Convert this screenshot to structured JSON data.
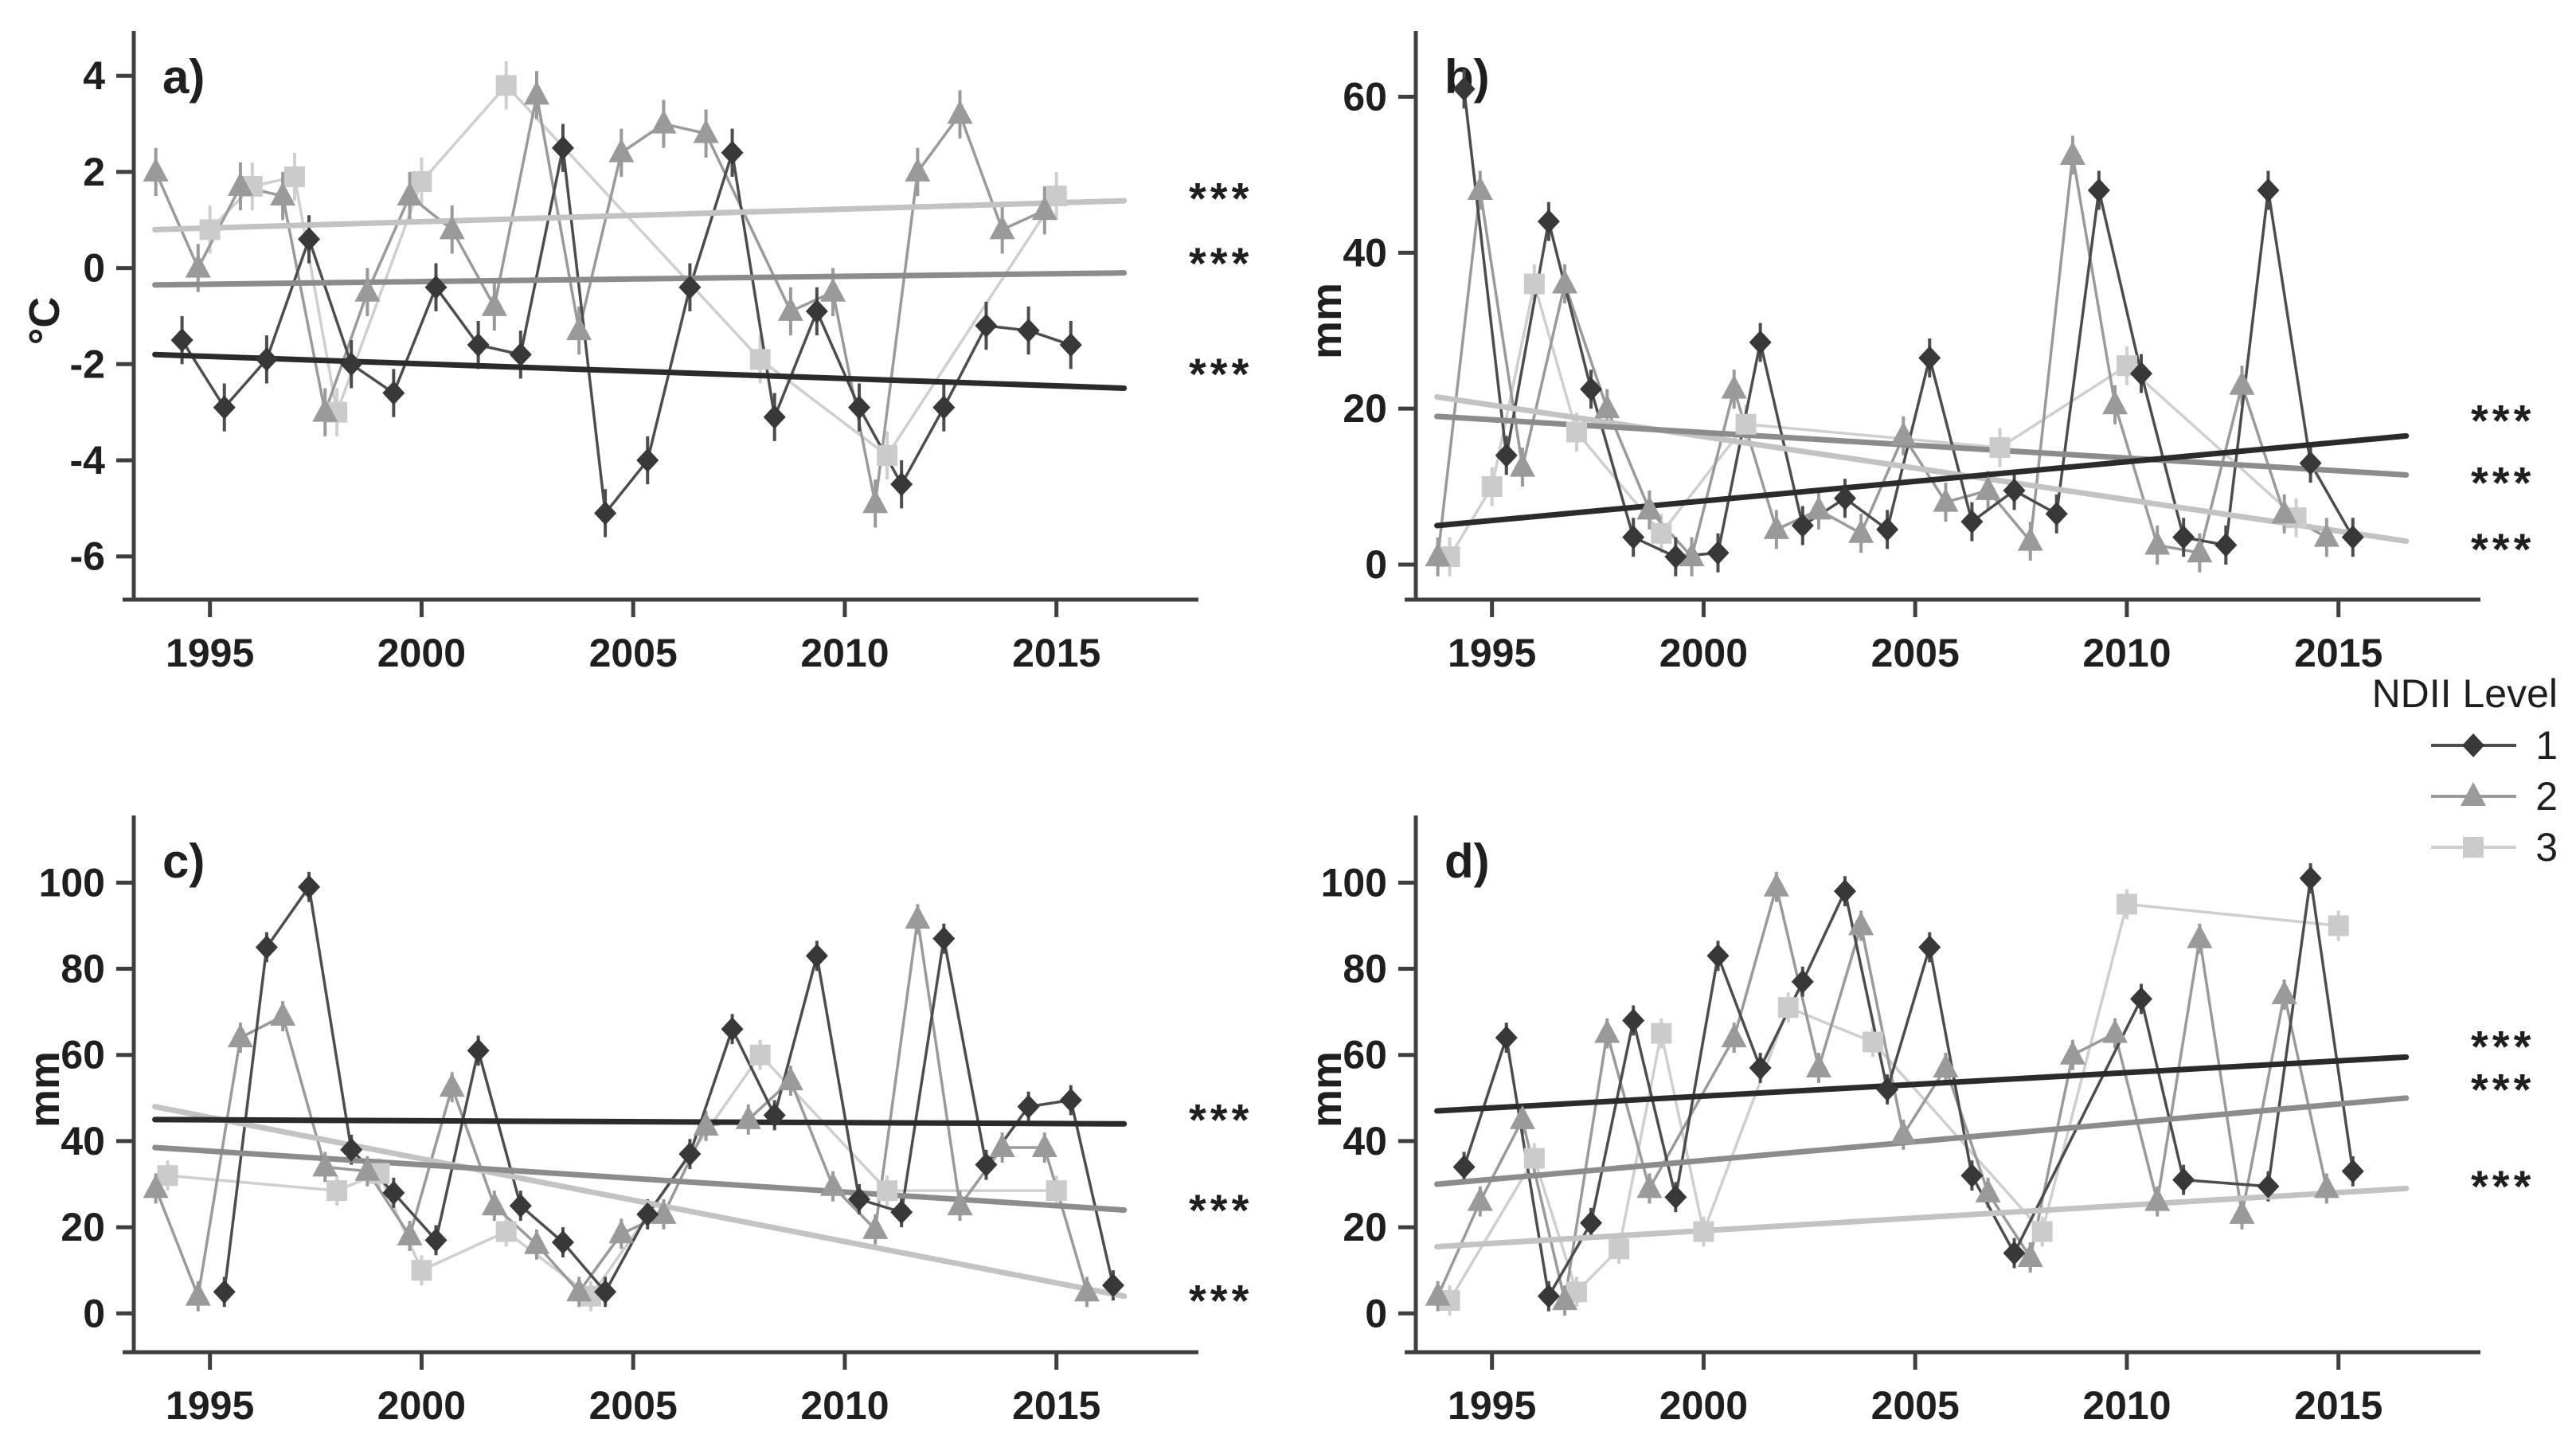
{
  "figure": {
    "background": "#ffffff",
    "description": "Four-panel seasonal climate time-series figure by NDII level"
  },
  "legend": {
    "title": "NDII Level",
    "items": [
      {
        "label": "1",
        "marker": "diamond",
        "color": "#383838",
        "line_color": "#4d4d4d",
        "trend_color": "#2b2b2b"
      },
      {
        "label": "2",
        "marker": "triangle",
        "color": "#9a9a9a",
        "line_color": "#9a9a9a",
        "trend_color": "#8c8c8c"
      },
      {
        "label": "3",
        "marker": "square",
        "color": "#cbcbcb",
        "line_color": "#cfcfcf",
        "trend_color": "#c3c3c3"
      }
    ]
  },
  "chart_data": [
    {
      "id": "a",
      "panel": "a)",
      "type": "line",
      "title": "",
      "xlabel": "",
      "ylabel": "°C",
      "x": [
        1994,
        1995,
        1996,
        1997,
        1998,
        1999,
        2000,
        2001,
        2002,
        2003,
        2004,
        2005,
        2006,
        2007,
        2008,
        2009,
        2010,
        2011,
        2012,
        2013,
        2014,
        2015,
        2016
      ],
      "x_ticks": [
        1995,
        2000,
        2005,
        2010,
        2015
      ],
      "y_ticks": [
        4,
        2,
        0,
        -2,
        -4,
        -6
      ],
      "xlim": [
        1993.2,
        2017.0
      ],
      "ylim": [
        -6.9,
        4.7
      ],
      "grid": false,
      "error_bar_halfwidth": 0.5,
      "series": [
        {
          "name": "NDII Level 1",
          "marker": "diamond",
          "values": [
            -1.5,
            -2.9,
            -1.9,
            0.6,
            -2.0,
            -2.6,
            -0.4,
            -1.6,
            -1.8,
            2.5,
            -5.1,
            -4.0,
            -0.4,
            2.4,
            -3.1,
            -0.9,
            -2.9,
            -4.5,
            -2.9,
            -1.2,
            -1.3,
            -1.6,
            null
          ],
          "trend": {
            "start": -1.8,
            "end": -2.5,
            "label": "***",
            "label_y": -2.2
          }
        },
        {
          "name": "NDII Level 2",
          "marker": "triangle",
          "values": [
            2.0,
            0.0,
            1.7,
            1.5,
            -3.0,
            -0.5,
            1.5,
            0.8,
            -0.8,
            3.6,
            -1.3,
            2.4,
            3.0,
            2.8,
            null,
            -0.9,
            -0.5,
            -4.9,
            2.0,
            3.2,
            0.8,
            1.2,
            null
          ],
          "trend": {
            "start": -0.35,
            "end": -0.1,
            "label": "***",
            "label_y": 0.1
          }
        },
        {
          "name": "NDII Level 3",
          "marker": "square",
          "values": [
            null,
            0.8,
            1.7,
            1.9,
            -3.0,
            null,
            1.8,
            null,
            3.8,
            null,
            null,
            null,
            null,
            null,
            -1.9,
            null,
            null,
            -3.9,
            null,
            null,
            null,
            1.5,
            null
          ],
          "trend": {
            "start": 0.8,
            "end": 1.4,
            "label": "***",
            "label_y": 1.45
          }
        }
      ]
    },
    {
      "id": "b",
      "panel": "b)",
      "type": "line",
      "title": "",
      "xlabel": "",
      "ylabel": "mm",
      "x": [
        1994,
        1995,
        1996,
        1997,
        1998,
        1999,
        2000,
        2001,
        2002,
        2003,
        2004,
        2005,
        2006,
        2007,
        2008,
        2009,
        2010,
        2011,
        2012,
        2013,
        2014,
        2015,
        2016
      ],
      "x_ticks": [
        1995,
        2000,
        2005,
        2010,
        2015
      ],
      "y_ticks": [
        60,
        40,
        20,
        0
      ],
      "xlim": [
        1993.2,
        2017.0
      ],
      "ylim": [
        -4.5,
        67
      ],
      "grid": false,
      "error_bar_halfwidth": 2.5,
      "series": [
        {
          "name": "NDII Level 1",
          "marker": "diamond",
          "values": [
            61,
            14,
            44,
            22.5,
            3.5,
            1,
            1.5,
            28.5,
            5,
            8.5,
            4.5,
            26.5,
            5.5,
            9.5,
            6.5,
            48,
            24.5,
            3.5,
            2.5,
            48,
            13,
            3.5,
            null
          ],
          "trend": {
            "start": 5,
            "end": 16.5,
            "label": "***",
            "label_y": 18.5
          }
        },
        {
          "name": "NDII Level 2",
          "marker": "triangle",
          "values": [
            1,
            48,
            12.5,
            36,
            20,
            7,
            1,
            22.5,
            4.5,
            7,
            4,
            16.5,
            8,
            9.5,
            3,
            52.5,
            20.5,
            2.5,
            1.5,
            23,
            6.5,
            3.5,
            null
          ],
          "trend": {
            "start": 19,
            "end": 11.5,
            "label": "***",
            "label_y": 10.5
          }
        },
        {
          "name": "NDII Level 3",
          "marker": "square",
          "values": [
            1,
            10,
            36,
            17,
            null,
            4,
            null,
            18,
            null,
            null,
            null,
            null,
            null,
            15,
            null,
            null,
            25.5,
            null,
            null,
            null,
            6,
            null,
            null
          ],
          "trend": {
            "start": 21.5,
            "end": 3,
            "label": "***",
            "label_y": 2
          }
        }
      ]
    },
    {
      "id": "c",
      "panel": "c)",
      "type": "line",
      "title": "",
      "xlabel": "",
      "ylabel": "mm",
      "x": [
        1994,
        1995,
        1996,
        1997,
        1998,
        1999,
        2000,
        2001,
        2002,
        2003,
        2004,
        2005,
        2006,
        2007,
        2008,
        2009,
        2010,
        2011,
        2012,
        2013,
        2014,
        2015,
        2016
      ],
      "x_ticks": [
        1995,
        2000,
        2005,
        2010,
        2015
      ],
      "y_ticks": [
        100,
        80,
        60,
        40,
        20,
        0
      ],
      "xlim": [
        1993.2,
        2017.0
      ],
      "ylim": [
        -9,
        113
      ],
      "grid": false,
      "error_bar_halfwidth": 3.5,
      "series": [
        {
          "name": "NDII Level 1",
          "marker": "diamond",
          "values": [
            null,
            5,
            85,
            99,
            38,
            28,
            17,
            61,
            25,
            16.5,
            5,
            23,
            37,
            66,
            46,
            83,
            26.5,
            23.5,
            87,
            34.5,
            48,
            49.5,
            6.5
          ],
          "trend": {
            "start": 45,
            "end": 44,
            "label": "***",
            "label_y": 45
          }
        },
        {
          "name": "NDII Level 2",
          "marker": "triangle",
          "values": [
            29,
            4,
            64,
            69,
            34,
            33,
            18,
            52.5,
            25,
            16,
            5,
            18.5,
            23,
            43.5,
            45,
            54,
            29.5,
            19.5,
            91.5,
            25,
            38.5,
            38.5,
            5
          ],
          "trend": {
            "start": 38.5,
            "end": 24,
            "label": "***",
            "label_y": 24
          }
        },
        {
          "name": "NDII Level 3",
          "marker": "square",
          "values": [
            32,
            null,
            null,
            null,
            28.5,
            32.5,
            10,
            null,
            19,
            null,
            4,
            null,
            null,
            null,
            60,
            null,
            null,
            28.5,
            null,
            null,
            null,
            28.5,
            null
          ],
          "trend": {
            "start": 48,
            "end": 4,
            "label": "***",
            "label_y": 3
          }
        }
      ]
    },
    {
      "id": "d",
      "panel": "d)",
      "type": "line",
      "title": "",
      "xlabel": "",
      "ylabel": "mm",
      "x": [
        1994,
        1995,
        1996,
        1997,
        1998,
        1999,
        2000,
        2001,
        2002,
        2003,
        2004,
        2005,
        2006,
        2007,
        2008,
        2009,
        2010,
        2011,
        2012,
        2013,
        2014,
        2015,
        2016
      ],
      "x_ticks": [
        1995,
        2000,
        2005,
        2010,
        2015
      ],
      "y_ticks": [
        100,
        80,
        60,
        40,
        20,
        0
      ],
      "xlim": [
        1993.2,
        2017.0
      ],
      "ylim": [
        -9,
        113
      ],
      "grid": false,
      "error_bar_halfwidth": 3.5,
      "series": [
        {
          "name": "NDII Level 1",
          "marker": "diamond",
          "values": [
            34,
            64,
            4,
            21,
            68,
            27,
            83,
            57,
            77,
            98,
            52,
            85,
            32,
            14,
            null,
            null,
            73,
            31,
            null,
            29.5,
            101,
            33,
            null
          ],
          "trend": {
            "start": 47,
            "end": 59.5,
            "label": "***",
            "label_y": 62
          }
        },
        {
          "name": "NDII Level 2",
          "marker": "triangle",
          "values": [
            4,
            26,
            45,
            3,
            65,
            29,
            null,
            64,
            99,
            57,
            90,
            41.5,
            57,
            28,
            13,
            60,
            65,
            26,
            87,
            23,
            74,
            29,
            null
          ],
          "trend": {
            "start": 30,
            "end": 50,
            "label": "***",
            "label_y": 52
          }
        },
        {
          "name": "NDII Level 3",
          "marker": "square",
          "values": [
            3,
            null,
            36,
            5,
            15,
            65,
            19,
            null,
            71,
            null,
            63,
            null,
            null,
            null,
            19,
            null,
            95,
            null,
            null,
            null,
            null,
            90,
            null
          ],
          "trend": {
            "start": 15.5,
            "end": 29,
            "label": "***",
            "label_y": 29.5
          }
        }
      ]
    }
  ]
}
